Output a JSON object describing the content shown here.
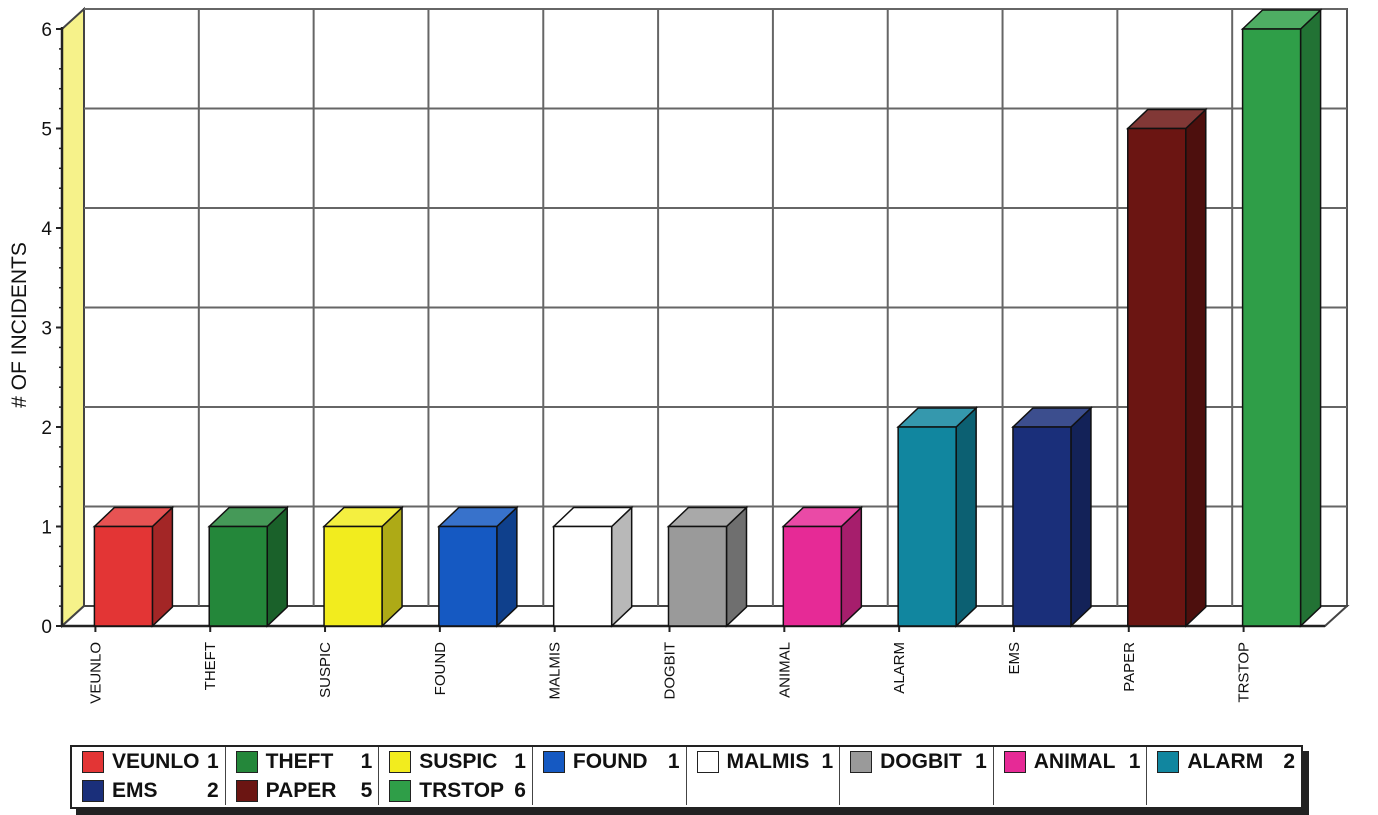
{
  "chart_data": {
    "type": "bar",
    "categories": [
      "VEUNLO",
      "THEFT",
      "SUSPIC",
      "FOUND",
      "MALMIS",
      "DOGBIT",
      "ANIMAL",
      "ALARM",
      "EMS",
      "PAPER",
      "TRSTOP"
    ],
    "values": [
      1,
      1,
      1,
      1,
      1,
      1,
      1,
      2,
      2,
      5,
      6
    ],
    "colors": [
      "#e33535",
      "#24873a",
      "#f2ec1e",
      "#1559c2",
      "#ffffff",
      "#9a9a9a",
      "#e62a96",
      "#11869f",
      "#1a2f7a",
      "#6b1512",
      "#2f9e48"
    ],
    "ylabel": "# OF INCIDENTS",
    "xlabel": "",
    "title": "",
    "ylim": [
      0,
      6
    ],
    "yticks": [
      "0",
      "1",
      "2",
      "3",
      "4",
      "5",
      "6"
    ],
    "grid": true,
    "legend_position": "bottom"
  },
  "legend": {
    "items": [
      {
        "name": "VEUNLO",
        "count": "1"
      },
      {
        "name": "THEFT",
        "count": "1"
      },
      {
        "name": "SUSPIC",
        "count": "1"
      },
      {
        "name": "FOUND",
        "count": "1"
      },
      {
        "name": "MALMIS",
        "count": "1"
      },
      {
        "name": "DOGBIT",
        "count": "1"
      },
      {
        "name": "ANIMAL",
        "count": "1"
      },
      {
        "name": "ALARM",
        "count": "2"
      },
      {
        "name": "EMS",
        "count": "2"
      },
      {
        "name": "PAPER",
        "count": "5"
      },
      {
        "name": "TRSTOP",
        "count": "6"
      }
    ]
  }
}
